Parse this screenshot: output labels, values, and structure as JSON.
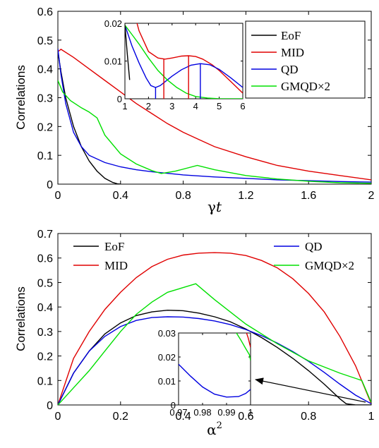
{
  "colors": {
    "EoF": "#000000",
    "MID": "#e00000",
    "QD": "#0000e0",
    "GMQD": "#00e000"
  },
  "chart_data": [
    {
      "type": "line",
      "ylabel": "Correlations",
      "xlabel_main": "γ",
      "xlabel_italic": "t",
      "xlim": [
        0,
        2
      ],
      "ylim": [
        0,
        0.6
      ],
      "xticks": [
        0,
        0.4,
        0.8,
        1.2,
        1.6,
        2
      ],
      "xtick_labels": [
        "0",
        "0.4",
        "0.8",
        "1.2",
        "1.6",
        "2"
      ],
      "yticks": [
        0,
        0.1,
        0.2,
        0.3,
        0.4,
        0.5,
        0.6
      ],
      "ytick_labels": [
        "0",
        "0.1",
        "0.2",
        "0.3",
        "0.4",
        "0.5",
        "0.6"
      ],
      "legend_position": "top-right",
      "series": [
        {
          "name": "EoF",
          "key": "EoF",
          "x": [
            0,
            0.02,
            0.05,
            0.1,
            0.15,
            0.2,
            0.25,
            0.3,
            0.35,
            0.38,
            0.4
          ],
          "y": [
            0.46,
            0.39,
            0.3,
            0.2,
            0.13,
            0.08,
            0.045,
            0.02,
            0.006,
            0.001,
            0
          ]
        },
        {
          "name": "MID",
          "key": "MID",
          "x": [
            0,
            0.02,
            0.1,
            0.2,
            0.3,
            0.4,
            0.5,
            0.6,
            0.7,
            0.8,
            0.9,
            1.0,
            1.2,
            1.4,
            1.6,
            1.8,
            2.0
          ],
          "y": [
            0.46,
            0.468,
            0.44,
            0.4,
            0.36,
            0.32,
            0.28,
            0.245,
            0.21,
            0.18,
            0.155,
            0.13,
            0.095,
            0.065,
            0.045,
            0.03,
            0.015
          ]
        },
        {
          "name": "QD",
          "key": "QD",
          "x": [
            0,
            0.02,
            0.05,
            0.1,
            0.15,
            0.2,
            0.3,
            0.4,
            0.5,
            0.6,
            0.8,
            1.0,
            1.2,
            1.4,
            1.6,
            1.8,
            2.0
          ],
          "y": [
            0.47,
            0.38,
            0.28,
            0.18,
            0.13,
            0.1,
            0.075,
            0.06,
            0.05,
            0.043,
            0.032,
            0.025,
            0.02,
            0.015,
            0.012,
            0.009,
            0.007
          ]
        },
        {
          "name": "GMQD×2",
          "key": "GMQD",
          "x": [
            0,
            0.03,
            0.08,
            0.15,
            0.2,
            0.25,
            0.3,
            0.4,
            0.5,
            0.6,
            0.66,
            0.75,
            0.89,
            1.0,
            1.2,
            1.4,
            1.6,
            1.8,
            2.0
          ],
          "y": [
            0.36,
            0.32,
            0.29,
            0.265,
            0.25,
            0.23,
            0.17,
            0.105,
            0.07,
            0.047,
            0.037,
            0.045,
            0.065,
            0.05,
            0.03,
            0.018,
            0.01,
            0.005,
            0.003
          ]
        }
      ],
      "inset": {
        "xlim": [
          1,
          6
        ],
        "ylim": [
          0,
          0.02
        ],
        "xticks": [
          1,
          2,
          3,
          4,
          5,
          6
        ],
        "xtick_labels": [
          "1",
          "2",
          "3",
          "4",
          "5",
          "6"
        ],
        "yticks": [
          0,
          0.01,
          0.02
        ],
        "ytick_labels": [
          "0",
          "0.01",
          "0.02"
        ],
        "series": [
          {
            "key": "MID",
            "x": [
              1,
              1.3,
              1.6,
              2.0,
              2.4,
              2.7,
              3.0,
              3.4,
              3.7,
              4.0,
              4.3,
              4.7,
              5.0,
              5.5,
              6.0
            ],
            "y": [
              0.032,
              0.025,
              0.018,
              0.0125,
              0.0108,
              0.0105,
              0.0108,
              0.0113,
              0.0114,
              0.0112,
              0.0105,
              0.009,
              0.0075,
              0.0045,
              0.0015
            ]
          },
          {
            "key": "QD",
            "x": [
              1,
              1.3,
              1.6,
              1.9,
              2.1,
              2.3,
              2.5,
              2.7,
              3.0,
              3.4,
              3.8,
              4.2,
              4.6,
              5.0,
              5.5,
              6.0
            ],
            "y": [
              0.0195,
              0.014,
              0.0095,
              0.0055,
              0.0035,
              0.003,
              0.0035,
              0.0045,
              0.006,
              0.0077,
              0.0089,
              0.0093,
              0.009,
              0.0078,
              0.0055,
              0.003
            ]
          },
          {
            "key": "GMQD",
            "x": [
              1,
              1.3,
              1.6,
              2.0,
              2.4,
              2.8,
              3.2,
              3.6,
              4.0,
              4.5,
              5.0,
              5.5,
              6.0
            ],
            "y": [
              0.0195,
              0.017,
              0.0145,
              0.0108,
              0.0075,
              0.005,
              0.003,
              0.0015,
              0.0006,
              0.0002,
              0,
              0,
              0
            ]
          },
          {
            "key": "EoF",
            "x": [
              1,
              1.1,
              1.2
            ],
            "y": [
              0.0195,
              0.012,
              0.005
            ]
          }
        ],
        "markers": [
          {
            "key": "QD",
            "x": 2.3,
            "y": 0.003
          },
          {
            "key": "MID",
            "x": 2.65,
            "y": 0.0106
          },
          {
            "key": "MID",
            "x": 3.7,
            "y": 0.0114
          },
          {
            "key": "QD",
            "x": 4.2,
            "y": 0.0093
          }
        ]
      }
    },
    {
      "type": "line",
      "ylabel": "Correlations",
      "xlabel_main": "α",
      "xlabel_sup": "2",
      "xlim": [
        0,
        1
      ],
      "ylim": [
        0,
        0.7
      ],
      "xticks": [
        0,
        0.2,
        0.4,
        0.6,
        0.8,
        1
      ],
      "xtick_labels": [
        "0",
        "0.2",
        "0.4",
        "0.6",
        "0.8",
        "1"
      ],
      "yticks": [
        0,
        0.1,
        0.2,
        0.3,
        0.4,
        0.5,
        0.6,
        0.7
      ],
      "ytick_labels": [
        "0",
        "0.1",
        "0.2",
        "0.3",
        "0.4",
        "0.5",
        "0.6",
        "0.7"
      ],
      "legend_position": "top",
      "series": [
        {
          "name": "EoF",
          "key": "EoF",
          "x": [
            0,
            0.05,
            0.1,
            0.15,
            0.2,
            0.25,
            0.3,
            0.35,
            0.4,
            0.45,
            0.5,
            0.55,
            0.6,
            0.65,
            0.7,
            0.75,
            0.8,
            0.85,
            0.9,
            0.92,
            0.95,
            1.0
          ],
          "y": [
            0,
            0.13,
            0.22,
            0.29,
            0.335,
            0.365,
            0.38,
            0.387,
            0.385,
            0.375,
            0.36,
            0.34,
            0.31,
            0.275,
            0.235,
            0.19,
            0.14,
            0.085,
            0.025,
            0.005,
            0,
            0
          ]
        },
        {
          "name": "MID",
          "key": "MID",
          "x": [
            0,
            0.05,
            0.1,
            0.15,
            0.2,
            0.25,
            0.3,
            0.35,
            0.4,
            0.45,
            0.5,
            0.55,
            0.6,
            0.65,
            0.7,
            0.75,
            0.8,
            0.85,
            0.9,
            0.95,
            1.0
          ],
          "y": [
            0,
            0.19,
            0.3,
            0.39,
            0.46,
            0.52,
            0.565,
            0.595,
            0.612,
            0.62,
            0.622,
            0.62,
            0.61,
            0.59,
            0.56,
            0.515,
            0.455,
            0.38,
            0.28,
            0.16,
            0.005
          ]
        },
        {
          "name": "QD",
          "key": "QD",
          "x": [
            0,
            0.05,
            0.1,
            0.15,
            0.2,
            0.25,
            0.3,
            0.35,
            0.4,
            0.45,
            0.5,
            0.55,
            0.6,
            0.65,
            0.7,
            0.75,
            0.8,
            0.85,
            0.9,
            0.95,
            1.0
          ],
          "y": [
            0,
            0.13,
            0.22,
            0.28,
            0.32,
            0.345,
            0.357,
            0.36,
            0.359,
            0.353,
            0.343,
            0.328,
            0.308,
            0.283,
            0.253,
            0.218,
            0.178,
            0.133,
            0.085,
            0.04,
            0.005
          ]
        },
        {
          "name": "GMQD×2",
          "key": "GMQD",
          "x": [
            0,
            0.05,
            0.1,
            0.15,
            0.2,
            0.25,
            0.3,
            0.35,
            0.44,
            0.5,
            0.6,
            0.7,
            0.8,
            0.9,
            0.97,
            1.0
          ],
          "y": [
            0,
            0.07,
            0.14,
            0.22,
            0.3,
            0.37,
            0.42,
            0.46,
            0.495,
            0.43,
            0.33,
            0.25,
            0.18,
            0.13,
            0.1,
            0.01
          ]
        }
      ],
      "inset": {
        "xlim": [
          0.97,
          1
        ],
        "ylim": [
          0,
          0.03
        ],
        "xticks": [
          0.97,
          0.98,
          0.99,
          1
        ],
        "xtick_labels": [
          "0.97",
          "0.98",
          "0.99",
          "1"
        ],
        "yticks": [
          0,
          0.01,
          0.02,
          0.03
        ],
        "ytick_labels": [
          "0",
          "0.01",
          "0.02",
          "0.03"
        ],
        "series": [
          {
            "key": "QD",
            "x": [
              0.97,
              0.975,
              0.98,
              0.985,
              0.99,
              0.995,
              0.998,
              1.0
            ],
            "y": [
              0.017,
              0.012,
              0.0075,
              0.0045,
              0.0033,
              0.0035,
              0.0048,
              0.0065
            ]
          },
          {
            "key": "GMQD",
            "x": [
              0.9935,
              0.996,
              0.998,
              0.9995,
              1.0
            ],
            "y": [
              0.031,
              0.027,
              0.0235,
              0.021,
              0.0185
            ]
          },
          {
            "key": "MID",
            "x": [
              0.998,
              0.999,
              1.0
            ],
            "y": [
              0.031,
              0.028,
              0.024
            ]
          }
        ]
      }
    }
  ]
}
